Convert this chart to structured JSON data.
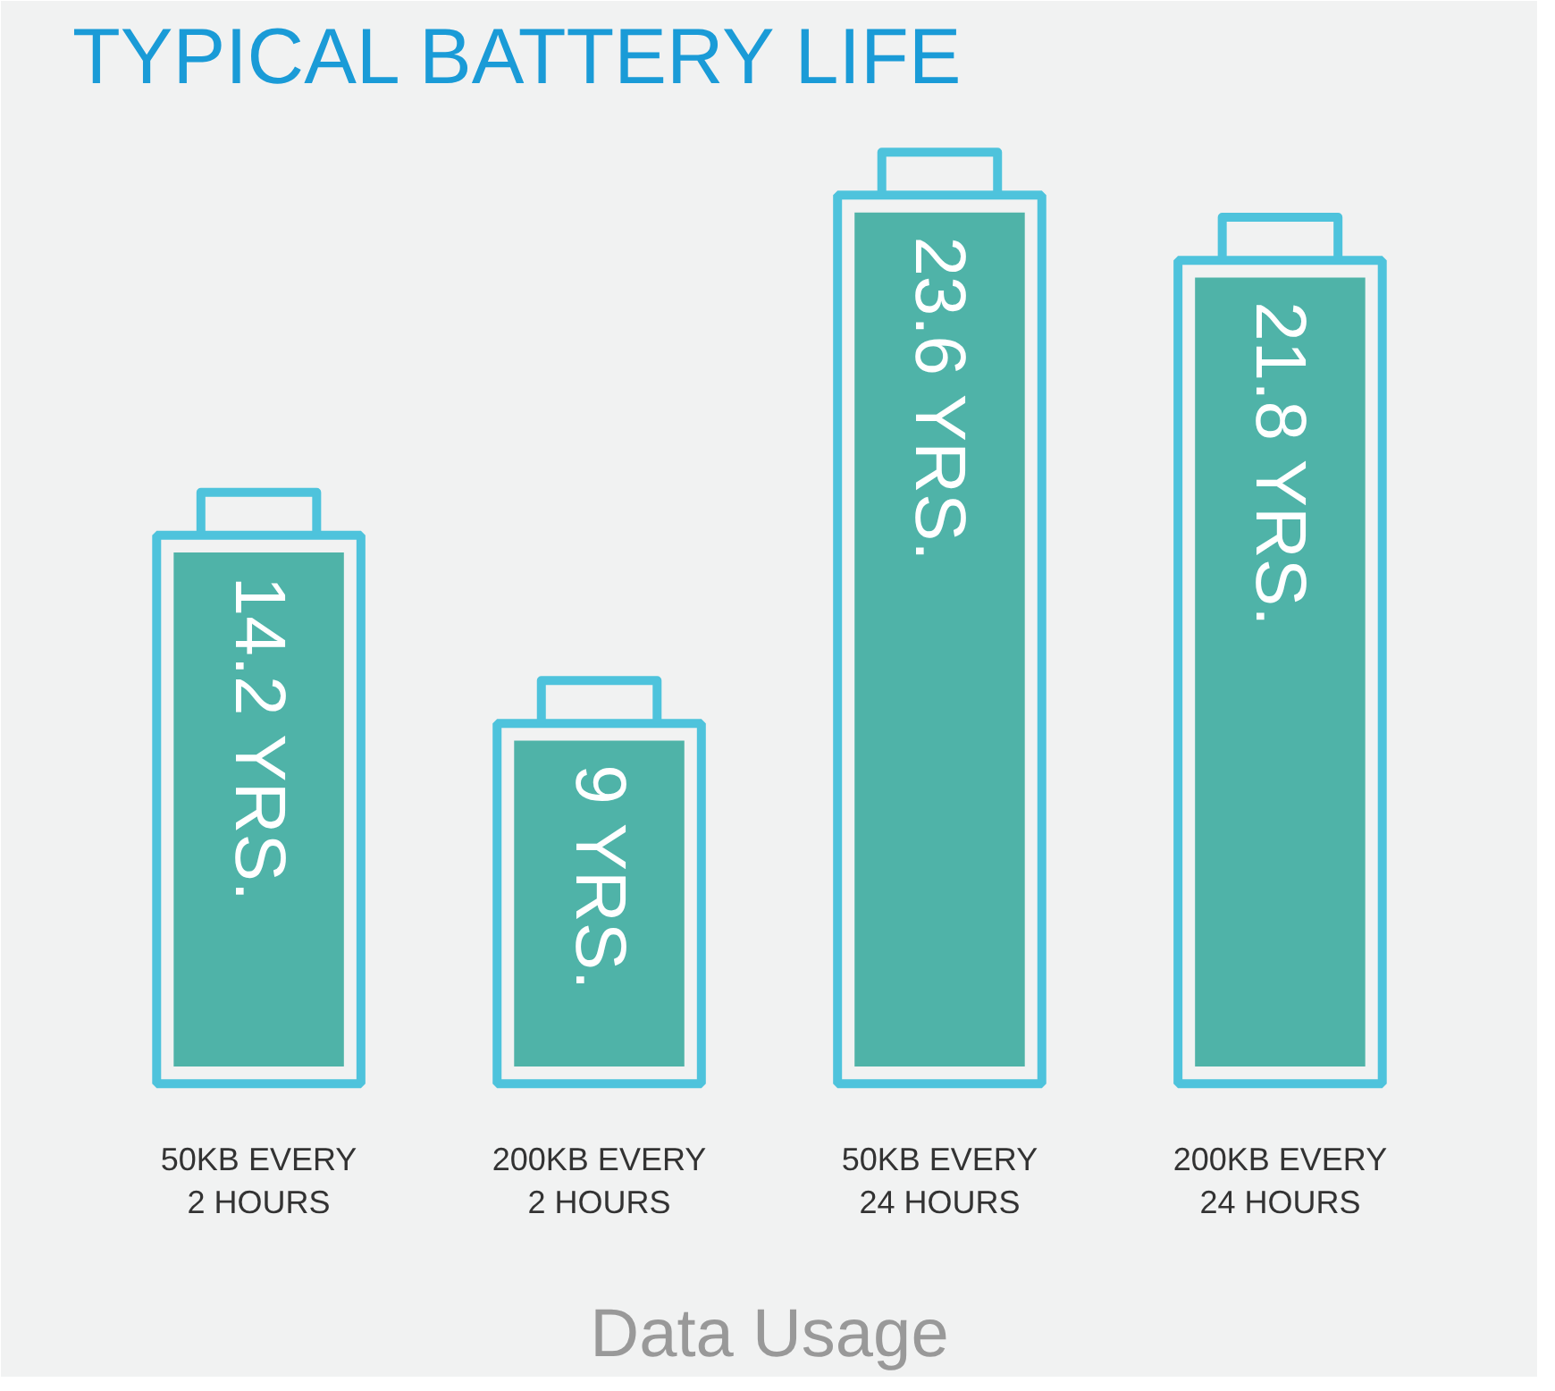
{
  "chart_data": {
    "type": "bar",
    "title": "TYPICAL BATTERY LIFE",
    "xlabel": "Data Usage",
    "categories": [
      "50KB EVERY\n2 HOURS",
      "200KB EVERY\n2 HOURS",
      "50KB EVERY\n24 HOURS",
      "200KB EVERY\n24 HOURS"
    ],
    "values": [
      14.2,
      9,
      23.6,
      21.8
    ],
    "color": "#4fb3a8",
    "value_labels": [
      "14.2 YRS.",
      "9 YRS.",
      "23.6 YRS.",
      "21.8 YRS."
    ],
    "grid": false
  }
}
